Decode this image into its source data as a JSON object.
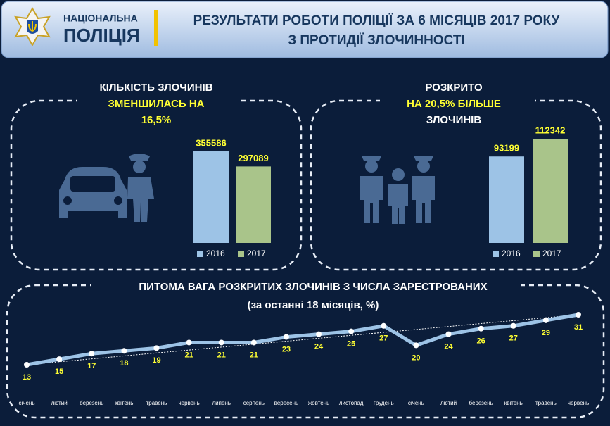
{
  "header": {
    "logo_top": "НАЦІОНАЛЬНА",
    "logo_bottom": "ПОЛІЦІЯ",
    "title_lines": [
      "РЕЗУЛЬТАТИ РОБОТИ ПОЛІЦІЇ ЗА 6 МІСЯЦІВ 2017 РОКУ",
      "З ПРОТИДІЇ ЗЛОЧИННОСТІ"
    ]
  },
  "chart_data": [
    {
      "type": "bar",
      "title_lines": [
        "КІЛЬКІСТЬ ЗЛОЧИНІВ",
        "ЗМЕНШИЛАСЬ НА",
        "16,5%"
      ],
      "categories": [
        "2016",
        "2017"
      ],
      "values": [
        355586,
        297089
      ],
      "colors": [
        "#9dc3e6",
        "#a9c48a"
      ]
    },
    {
      "type": "bar",
      "title_lines": [
        "РОЗКРИТО",
        "НА 20,5% БІЛЬШЕ",
        "ЗЛОЧИНІВ"
      ],
      "categories": [
        "2016",
        "2017"
      ],
      "values": [
        93199,
        112342
      ],
      "colors": [
        "#9dc3e6",
        "#a9c48a"
      ]
    },
    {
      "type": "line",
      "title": "ПИТОМА ВАГА РОЗКРИТИХ ЗЛОЧИНІВ З ЧИСЛА ЗАРЕСТРОВАНИХ",
      "subtitle": "(за останні 18 місяців, %)",
      "categories": [
        "січень",
        "лютий",
        "березень",
        "квітень",
        "травень",
        "червень",
        "липень",
        "серпень",
        "вересень",
        "жовтень",
        "листопад",
        "грудень",
        "січень",
        "лютий",
        "березень",
        "квітень",
        "травень",
        "червень"
      ],
      "series": [
        {
          "color": "#9dc3e6",
          "values": [
            13,
            15,
            17,
            18,
            19,
            21,
            21,
            21,
            23,
            24,
            25,
            27,
            20,
            24,
            26,
            27,
            29,
            31
          ]
        }
      ]
    }
  ]
}
